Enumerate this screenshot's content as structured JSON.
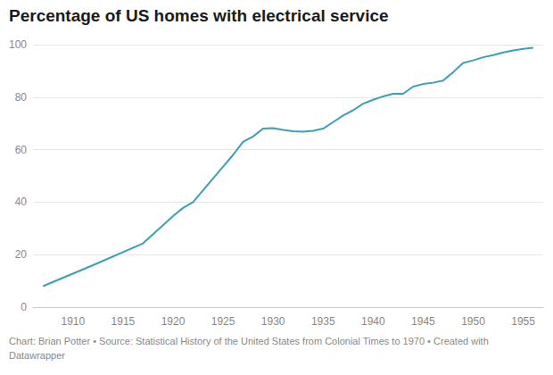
{
  "chart_data": {
    "type": "line",
    "title": "Percentage of US homes with electrical service",
    "caption": "Chart: Brian Potter • Source: Statistical History of the United States from Colonial Times to 1970 • Created with Datawrapper",
    "x": [
      1907,
      1912,
      1917,
      1920,
      1921,
      1922,
      1923,
      1924,
      1925,
      1926,
      1927,
      1928,
      1929,
      1930,
      1931,
      1932,
      1933,
      1934,
      1935,
      1936,
      1937,
      1938,
      1939,
      1940,
      1941,
      1942,
      1943,
      1944,
      1945,
      1946,
      1947,
      1948,
      1949,
      1950,
      1951,
      1952,
      1953,
      1954,
      1955,
      1956
    ],
    "values": [
      8,
      16,
      24.3,
      34.7,
      37.8,
      40,
      44.5,
      49,
      53.5,
      58,
      63,
      65,
      68,
      68.2,
      67.5,
      67,
      66.8,
      67.2,
      68,
      70.5,
      73,
      75,
      77.5,
      79,
      80.3,
      81.3,
      81.3,
      84,
      85,
      85.5,
      86.3,
      89.5,
      93,
      94,
      95.2,
      96,
      97,
      97.8,
      98.4,
      98.8
    ],
    "color": "#3aa0b6",
    "xlim": [
      1906,
      1957
    ],
    "xticks": [
      1910,
      1915,
      1920,
      1925,
      1930,
      1935,
      1940,
      1945,
      1950,
      1955
    ],
    "ylim": [
      0,
      100
    ],
    "yticks": [
      0,
      20,
      40,
      60,
      80,
      100
    ],
    "grid": true
  }
}
